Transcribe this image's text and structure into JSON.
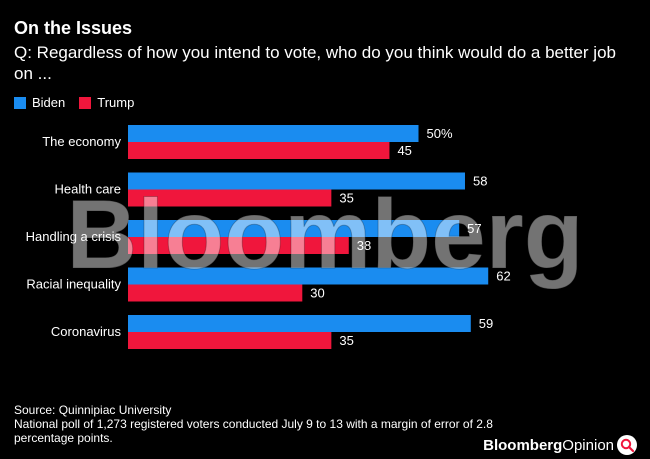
{
  "header": {
    "title": "On the Issues",
    "subtitle": "Q: Regardless of how you intend to vote, who do you think would do a better job on ..."
  },
  "legend": {
    "biden": "Biden",
    "trump": "Trump"
  },
  "colors": {
    "biden": "#1a8cf0",
    "trump": "#f0163c",
    "background": "#000000"
  },
  "watermark": "Bloomberg",
  "footer": {
    "source": "Source: Quinnipiac University",
    "note": "National poll of 1,273 registered voters conducted July 9 to 13 with a margin of error of 2.8 percentage points."
  },
  "logo": {
    "brand": "Bloomberg",
    "section": "Opinion"
  },
  "chart_data": {
    "type": "bar",
    "orientation": "horizontal",
    "title": "On the Issues",
    "categories": [
      "The economy",
      "Health care",
      "Handling a crisis",
      "Racial inequality",
      "Coronavirus"
    ],
    "series": [
      {
        "name": "Biden",
        "values": [
          50,
          58,
          57,
          62,
          59
        ],
        "labels": [
          "50%",
          "58",
          "57",
          "62",
          "59"
        ]
      },
      {
        "name": "Trump",
        "values": [
          45,
          35,
          38,
          30,
          35
        ],
        "labels": [
          "45",
          "35",
          "38",
          "30",
          "35"
        ]
      }
    ],
    "xlim": [
      0,
      100
    ],
    "grid": false,
    "legend_position": "top-left"
  }
}
